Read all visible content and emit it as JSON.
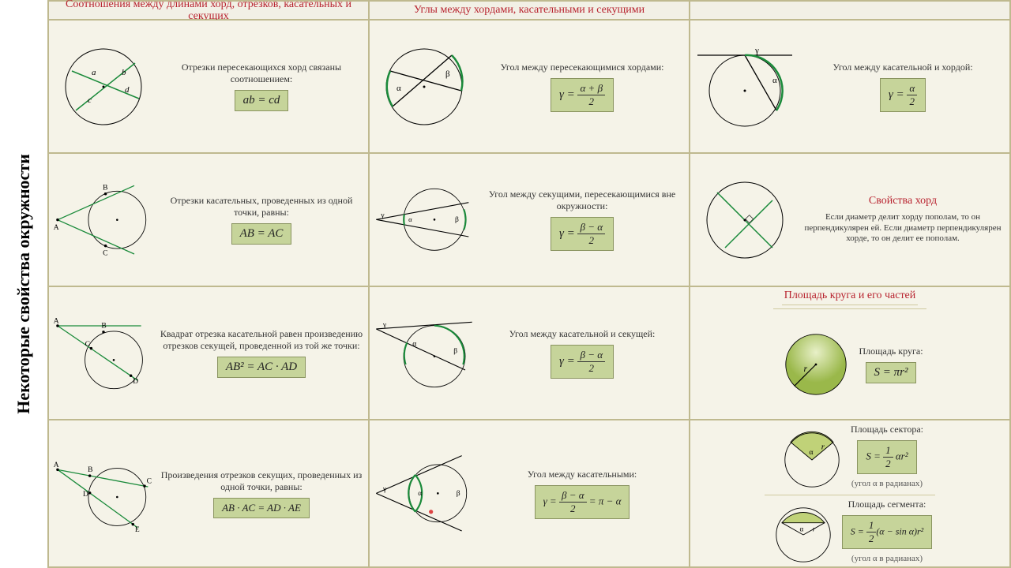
{
  "page_title": "Некоторые свойства окружности",
  "colors": {
    "bg": "#f2f0e6",
    "cell_bg": "#f5f3e8",
    "border": "#bfb98f",
    "header_text": "#b8232f",
    "formula_bg": "#c6d49a",
    "formula_border": "#8a9460",
    "circle_stroke": "#000",
    "chord_green": "#1a8a3a",
    "line_black": "#000",
    "fill_green": "#a8c060"
  },
  "headers": {
    "col1": "Соотношения между длинами хорд, отрезков, касательных и секущих",
    "col2": "Углы между хордами, касательными и секущими",
    "col3_blank": ""
  },
  "cells": {
    "r1c1": {
      "desc": "Отрезки пересекающихся хорд связаны соотношением:",
      "formula": "ab = cd",
      "labels": {
        "a": "a",
        "b": "b",
        "c": "c",
        "d": "d"
      }
    },
    "r1c2": {
      "desc": "Угол между пересекающимися хордами:",
      "formula_html": "γ = <span class='frac'><span class='n'>α + β</span><span class='d'>2</span></span>",
      "labels": {
        "a": "α",
        "b": "β"
      }
    },
    "r1c3": {
      "desc": "Угол между касательной и хордой:",
      "formula_html": "γ = <span class='frac'><span class='n'>α</span><span class='d'>2</span></span>",
      "labels": {
        "g": "γ",
        "a": "α"
      }
    },
    "r2c1": {
      "desc": "Отрезки касательных, проведенных из одной точки, равны:",
      "formula": "AB = AC",
      "labels": {
        "A": "A",
        "B": "B",
        "C": "C"
      }
    },
    "r2c2": {
      "desc": "Угол между секущими, пересекающимися вне окружности:",
      "formula_html": "γ = <span class='frac'><span class='n'>β − α</span><span class='d'>2</span></span>",
      "labels": {
        "g": "γ",
        "a": "α",
        "b": "β"
      }
    },
    "r2c3": {
      "header": "Свойства хорд",
      "desc": "Если диаметр делит хорду пополам, то он перпендикулярен ей. Если диаметр перпендикулярен хорде, то он делит ее пополам."
    },
    "r3c1": {
      "desc": "Квадрат отрезка касательной равен произведению отрезков секущей, проведенной из той же точки:",
      "formula": "AB² = AC · AD",
      "labels": {
        "A": "A",
        "B": "B",
        "C": "C",
        "D": "D"
      }
    },
    "r3c2": {
      "desc": "Угол между касательной и секущей:",
      "formula_html": "γ = <span class='frac'><span class='n'>β − α</span><span class='d'>2</span></span>",
      "labels": {
        "g": "γ",
        "a": "α",
        "b": "β"
      }
    },
    "r3c3": {
      "header": "Площадь круга и его частей",
      "desc": "Площадь круга:",
      "formula": "S = πr²",
      "labels": {
        "r": "r"
      }
    },
    "r4c1": {
      "desc": "Произведения отрезков секущих, проведенных из одной точки, равны:",
      "formula": "AB · AC = AD · AE",
      "labels": {
        "A": "A",
        "B": "B",
        "C": "C",
        "D": "D",
        "E": "E"
      }
    },
    "r4c2": {
      "desc": "Угол между касательными:",
      "formula_html": "γ = <span class='frac'><span class='n'>β − α</span><span class='d'>2</span></span> = π − α",
      "labels": {
        "g": "γ",
        "a": "α",
        "b": "β"
      }
    },
    "r4c3_sector": {
      "desc": "Площадь сектора:",
      "formula_html": "S = <span class='frac'><span class='n'>1</span><span class='d'>2</span></span> αr²",
      "note": "(угол α в радианах)",
      "labels": {
        "a": "α",
        "r": "r"
      }
    },
    "r4c3_segment": {
      "desc": "Площадь сегмента:",
      "formula_html": "S = <span class='frac'><span class='n'>1</span><span class='d'>2</span></span>(α − sin α)r²",
      "note": "(угол α в радианах)",
      "labels": {
        "a": "α",
        "r": "r"
      }
    }
  }
}
